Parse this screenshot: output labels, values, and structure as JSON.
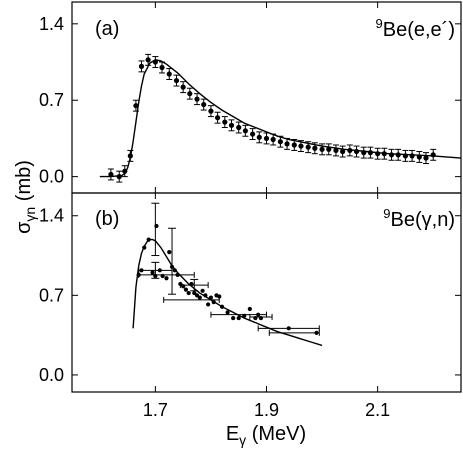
{
  "chart_data": [
    {
      "type": "scatter",
      "panel_label": "(a)",
      "reaction_label": {
        "superscript": "9",
        "text": "Be(e,e´)"
      },
      "xlim": [
        1.55,
        2.25
      ],
      "ylim": [
        -0.15,
        1.6
      ],
      "yticks": [
        "0.0",
        "0.7",
        "1.4"
      ],
      "grid": false,
      "series": [
        {
          "x": [
            1.62,
            1.635,
            1.645,
            1.655,
            1.665,
            1.675,
            1.687,
            1.7,
            1.712,
            1.725,
            1.738,
            1.75,
            1.762,
            1.775,
            1.787,
            1.8,
            1.812,
            1.825,
            1.837,
            1.85,
            1.862,
            1.875,
            1.887,
            1.9,
            1.912,
            1.925,
            1.937,
            1.95,
            1.962,
            1.975,
            1.987,
            2.0,
            2.012,
            2.025,
            2.037,
            2.05,
            2.062,
            2.075,
            2.087,
            2.1,
            2.112,
            2.125,
            2.137,
            2.15,
            2.162,
            2.175,
            2.187,
            2.2
          ],
          "y": [
            0.02,
            0.0,
            0.05,
            0.19,
            0.65,
            1.01,
            1.07,
            1.05,
            1.0,
            0.94,
            0.88,
            0.82,
            0.76,
            0.71,
            0.66,
            0.6,
            0.54,
            0.5,
            0.47,
            0.45,
            0.42,
            0.39,
            0.36,
            0.35,
            0.34,
            0.32,
            0.3,
            0.29,
            0.28,
            0.27,
            0.26,
            0.25,
            0.25,
            0.24,
            0.23,
            0.24,
            0.23,
            0.22,
            0.22,
            0.21,
            0.21,
            0.2,
            0.2,
            0.19,
            0.19,
            0.18,
            0.17,
            0.2
          ],
          "yerr": [
            0.05,
            0.05,
            0.05,
            0.05,
            0.05,
            0.05,
            0.05,
            0.05,
            0.05,
            0.05,
            0.05,
            0.05,
            0.05,
            0.05,
            0.05,
            0.05,
            0.05,
            0.05,
            0.05,
            0.05,
            0.05,
            0.05,
            0.05,
            0.05,
            0.05,
            0.05,
            0.05,
            0.05,
            0.05,
            0.05,
            0.05,
            0.05,
            0.05,
            0.05,
            0.05,
            0.05,
            0.05,
            0.05,
            0.05,
            0.05,
            0.05,
            0.05,
            0.05,
            0.05,
            0.05,
            0.05,
            0.05,
            0.05
          ]
        }
      ],
      "fit_curve": {
        "x": [
          1.6,
          1.62,
          1.64,
          1.645,
          1.65,
          1.655,
          1.66,
          1.665,
          1.67,
          1.675,
          1.68,
          1.69,
          1.7,
          1.71,
          1.72,
          1.74,
          1.76,
          1.78,
          1.8,
          1.82,
          1.84,
          1.86,
          1.88,
          1.9,
          1.92,
          1.94,
          1.96,
          1.98,
          2.0,
          2.04,
          2.08,
          2.12,
          2.16,
          2.2,
          2.25
        ],
        "y": [
          0.0,
          0.0,
          0.01,
          0.03,
          0.08,
          0.17,
          0.32,
          0.5,
          0.68,
          0.83,
          0.94,
          1.04,
          1.07,
          1.06,
          1.03,
          0.95,
          0.85,
          0.76,
          0.68,
          0.61,
          0.55,
          0.49,
          0.45,
          0.41,
          0.37,
          0.34,
          0.32,
          0.3,
          0.28,
          0.25,
          0.23,
          0.21,
          0.2,
          0.19,
          0.17
        ]
      }
    },
    {
      "type": "scatter",
      "panel_label": "(b)",
      "reaction_label": {
        "superscript": "9",
        "text": "Be(γ,n)"
      },
      "xlim": [
        1.55,
        2.25
      ],
      "ylim": [
        -0.15,
        1.6
      ],
      "xticks": [
        "1.7",
        "1.9",
        "2.1"
      ],
      "yticks": [
        "0.0",
        "0.7",
        "1.4"
      ],
      "xlabel": {
        "main": "E",
        "sub": "γ",
        "rest": " (MeV)"
      },
      "ylabel": {
        "main": "σ",
        "sub": "γn",
        "rest": " (mb)"
      },
      "grid": false,
      "series": [
        {
          "x": [
            1.67,
            1.675,
            1.68,
            1.688,
            1.695,
            1.7,
            1.702,
            1.708,
            1.713,
            1.72,
            1.725,
            1.73,
            1.735,
            1.74,
            1.745,
            1.75,
            1.755,
            1.76,
            1.765,
            1.77,
            1.775,
            1.78,
            1.785,
            1.79,
            1.795,
            1.8,
            1.805,
            1.81,
            1.815,
            1.82,
            1.83,
            1.84,
            1.85,
            1.86,
            1.87,
            1.88,
            1.885,
            1.89,
            1.94,
            1.99
          ],
          "y": [
            0.88,
            0.92,
            1.12,
            1.19,
            0.9,
            0.87,
            1.31,
            0.92,
            0.87,
            0.85,
            1.08,
            0.95,
            0.92,
            0.88,
            0.8,
            0.78,
            0.75,
            0.72,
            0.8,
            0.72,
            0.7,
            0.68,
            0.74,
            0.7,
            0.62,
            0.68,
            0.64,
            0.7,
            0.69,
            0.6,
            0.55,
            0.5,
            0.5,
            0.52,
            0.58,
            0.5,
            0.53,
            0.5,
            0.41,
            0.37
          ],
          "error_bars_shown_on": [
            {
              "x": 1.7,
              "y": 0.92,
              "xerr": 0.03,
              "yerr": 0.07
            },
            {
              "x": 1.7,
              "y": 1.28,
              "xerr": 0.0,
              "yerr": 0.23
            },
            {
              "x": 1.73,
              "y": 1.0,
              "xerr": 0.0,
              "yerr": 0.29
            },
            {
              "x": 1.72,
              "y": 0.88,
              "xerr": 0.05,
              "yerr": 0.0
            },
            {
              "x": 1.77,
              "y": 0.79,
              "xerr": 0.025,
              "yerr": 0.05
            },
            {
              "x": 1.765,
              "y": 0.66,
              "xerr": 0.05,
              "yerr": 0.0
            },
            {
              "x": 1.85,
              "y": 0.53,
              "xerr": 0.05,
              "yerr": 0.0
            },
            {
              "x": 1.94,
              "y": 0.41,
              "xerr": 0.055,
              "yerr": 0.0
            },
            {
              "x": 1.89,
              "y": 0.51,
              "xerr": 0.02,
              "yerr": 0.0
            },
            {
              "x": 1.95,
              "y": 0.37,
              "xerr": 0.045,
              "yerr": 0.0
            }
          ]
        }
      ],
      "fit_curve": {
        "x": [
          1.66,
          1.665,
          1.67,
          1.675,
          1.68,
          1.685,
          1.69,
          1.695,
          1.7,
          1.71,
          1.72,
          1.73,
          1.74,
          1.76,
          1.78,
          1.8,
          1.82,
          1.84,
          1.86,
          1.88,
          1.9,
          1.92,
          1.94,
          1.96,
          1.98,
          2.0
        ],
        "y": [
          0.41,
          0.77,
          0.96,
          1.07,
          1.13,
          1.17,
          1.19,
          1.19,
          1.18,
          1.12,
          1.04,
          0.96,
          0.9,
          0.8,
          0.72,
          0.66,
          0.6,
          0.55,
          0.5,
          0.46,
          0.42,
          0.38,
          0.35,
          0.32,
          0.29,
          0.26
        ]
      }
    }
  ]
}
